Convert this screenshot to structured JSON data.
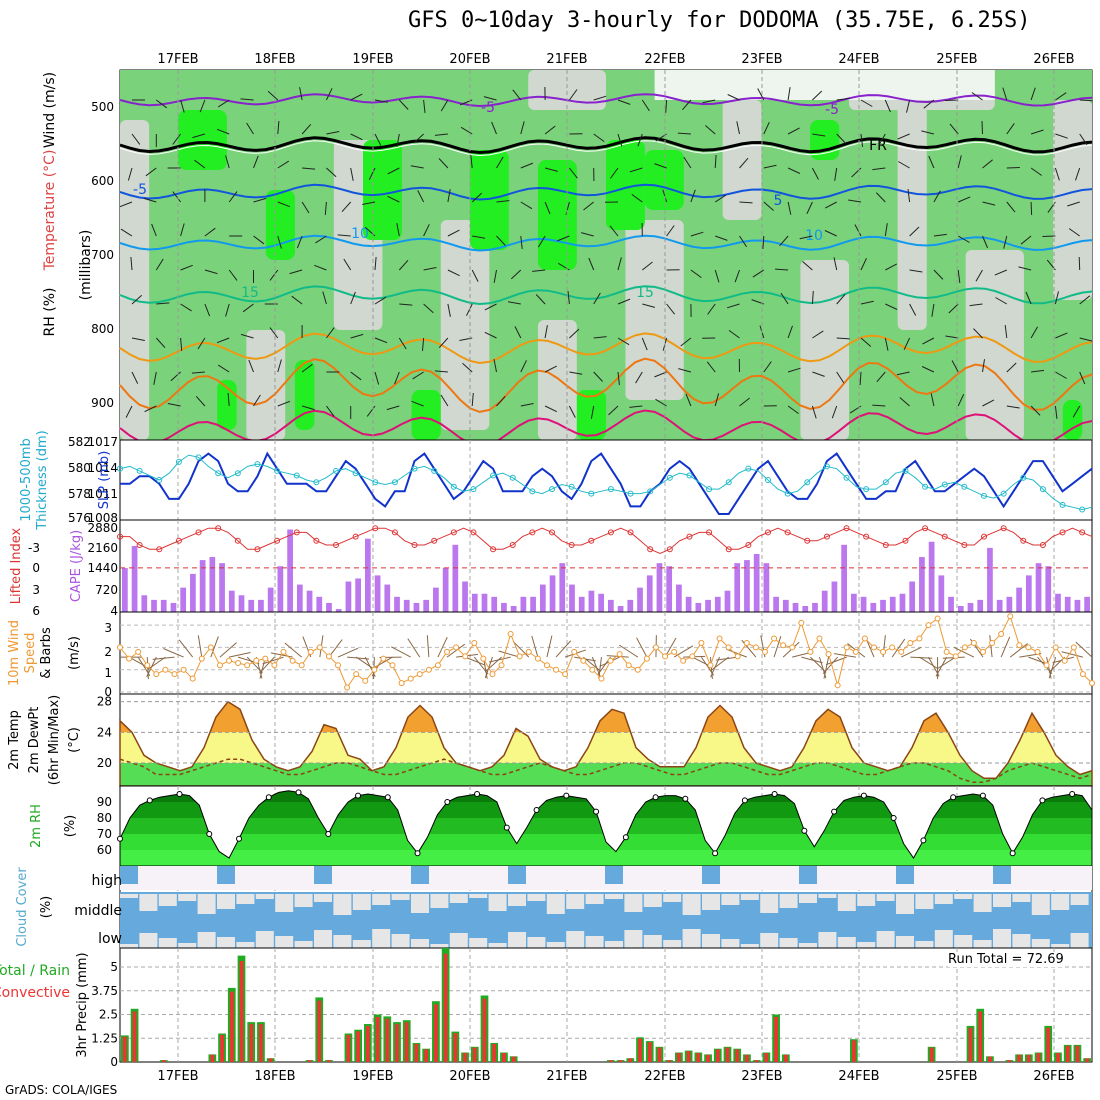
{
  "title": "GFS 0~10day 3-hourly for DODOMA (35.75E, 6.25S)",
  "credit": "GrADS: COLA/IGES",
  "run_total": "Run Total = 72.69",
  "date_labels": [
    "17FEB",
    "18FEB",
    "19FEB",
    "20FEB",
    "21FEB",
    "22FEB",
    "23FEB",
    "24FEB",
    "25FEB",
    "26FEB"
  ],
  "colors": {
    "rh_light": "#d0d8d0",
    "rh_mid": "#7ad27a",
    "rh_bright": "#22ee22",
    "t_minus5": "#8822cc",
    "t_zero": "#000000",
    "t_5": "#1155dd",
    "t_10": "#1199ee",
    "t_15": "#11bb88",
    "t_20": "#ee9911",
    "t_25": "#ee7711",
    "t_30": "#dd1177",
    "slp": "#1133cc",
    "thickness": "#22bbcc",
    "cape": "#bb77ee",
    "lifted": "#dd3333",
    "wind": "#ee9933",
    "temp_fill_hi": "#f2a030",
    "temp_fill_mid": "#f8f888",
    "temp_fill_low": "#55dd55",
    "rh2m": "#119911",
    "cloud": "#66aadd",
    "precip_total": "#22aa22",
    "precip_conv": "#ee3333"
  },
  "panels": {
    "upper": {
      "ylabel_wind": "Wind (m/s)",
      "ylabel_temp": "Temperature (°C)",
      "ylabel_rh": "RH (%)",
      "ylabel_pres": "(millibars)",
      "ticks": [
        "500",
        "600",
        "700",
        "800",
        "900"
      ],
      "contour_labels": [
        "-5",
        "-5",
        "FR",
        "-5",
        "5",
        "10",
        "10",
        "15",
        "15"
      ]
    },
    "slp": {
      "ylabel_a": "1000-500mb",
      "ylabel_b": "Thickness (dm)",
      "ylabel_c": "SLP (mb)",
      "left_ticks": [
        "582",
        "580",
        "578",
        "576"
      ],
      "right_ticks": [
        "1017",
        "1014",
        "1011",
        "1008"
      ]
    },
    "cape": {
      "ylabel_a": "Lifted Index",
      "ylabel_b": "CAPE (J/kg)",
      "left_ticks": [
        "-3",
        "0",
        "3",
        "6"
      ],
      "right_ticks": [
        "2880",
        "2160",
        "1440",
        "720",
        "4"
      ]
    },
    "wind": {
      "ylabel_a": "10m Wind",
      "ylabel_b": "Speed",
      "ylabel_c": "& Barbs",
      "ylabel_d": "(m/s)",
      "ticks": [
        "3",
        "2",
        "1",
        "0"
      ]
    },
    "temp": {
      "ylabel_a": "2m Temp",
      "ylabel_b": "2m DewPt",
      "ylabel_c": "(6hr Min/Max)",
      "ylabel_d": "(°C)",
      "ticks": [
        "28",
        "24",
        "20"
      ]
    },
    "rh": {
      "ylabel_a": "2m RH",
      "ylabel_b": "(%)",
      "ticks": [
        "90",
        "80",
        "70",
        "60"
      ]
    },
    "cloud": {
      "ylabel_a": "Cloud Cover",
      "ylabel_b": "(%)",
      "levels": [
        "high",
        "middle",
        "low"
      ]
    },
    "precip": {
      "ylabel_a": "Total / Rain",
      "ylabel_b": "Convective",
      "ylabel_c": "3hr Precip (mm)",
      "ticks": [
        "5",
        "3.75",
        "2.5",
        "1.25",
        "0"
      ]
    }
  },
  "chart_data": [
    {
      "type": "line",
      "name": "SLP (mb)",
      "ylim": [
        1008,
        1017
      ],
      "values": [
        1012,
        1012,
        1013,
        1013,
        1012,
        1010,
        1010,
        1012,
        1015,
        1016,
        1015,
        1012,
        1011,
        1011,
        1013,
        1016,
        1014,
        1012,
        1012,
        1012,
        1011,
        1011,
        1013,
        1015,
        1014,
        1012,
        1010,
        1009,
        1011,
        1011,
        1015,
        1016,
        1014,
        1012,
        1010,
        1011,
        1013,
        1015,
        1014,
        1011,
        1011,
        1011,
        1013,
        1014,
        1013,
        1011,
        1010,
        1012,
        1015,
        1016,
        1014,
        1012,
        1009,
        1009,
        1011,
        1012,
        1014,
        1015,
        1014,
        1012,
        1010,
        1008,
        1008,
        1010,
        1012,
        1014,
        1015,
        1013,
        1011,
        1010,
        1010,
        1012,
        1015,
        1016,
        1014,
        1012,
        1010,
        1010,
        1011,
        1011,
        1014,
        1015,
        1013,
        1011,
        1011,
        1012,
        1013,
        1014,
        1013,
        1011,
        1009,
        1011,
        1013,
        1015,
        1015,
        1013,
        1011,
        1012,
        1013,
        1014
      ]
    },
    {
      "type": "line",
      "name": "1000-500mb Thickness (dm)",
      "ylim": [
        576,
        582
      ],
      "values": [
        580.0,
        580.2,
        579.8,
        579.4,
        579.0,
        579.6,
        580.6,
        581.2,
        581.0,
        580.2,
        579.6,
        579.2,
        579.6,
        580.2,
        580.4,
        580.2,
        579.8,
        579.6,
        579.4,
        579.0,
        578.8,
        579.2,
        579.8,
        580.0,
        579.6,
        579.2,
        578.8,
        578.6,
        578.8,
        579.4,
        580.0,
        580.2,
        579.8,
        579.2,
        578.4,
        578.0,
        578.2,
        578.8,
        579.4,
        579.6,
        579.2,
        578.6,
        578.0,
        577.8,
        578.2,
        578.6,
        578.4,
        578.0,
        577.8,
        578.0,
        578.2,
        578.0,
        577.8,
        577.8,
        578.0,
        578.6,
        579.2,
        579.6,
        579.4,
        578.8,
        578.2,
        578.2,
        578.8,
        579.6,
        580.0,
        579.8,
        579.0,
        578.2,
        577.8,
        578.0,
        578.8,
        579.6,
        580.2,
        580.0,
        579.2,
        578.4,
        578.2,
        578.2,
        578.8,
        579.6,
        579.8,
        579.2,
        578.4,
        578.2,
        578.6,
        578.8,
        578.4,
        578.0,
        577.6,
        577.4,
        577.8,
        578.6,
        579.2,
        579.0,
        578.2,
        577.4,
        576.8,
        576.6,
        576.4,
        576.6
      ]
    },
    {
      "type": "bar",
      "name": "CAPE (J/kg)",
      "ylim": [
        4,
        2880
      ],
      "values": [
        1440,
        2160,
        550,
        400,
        400,
        300,
        800,
        1250,
        1700,
        1800,
        1600,
        700,
        550,
        400,
        400,
        800,
        1500,
        2700,
        900,
        700,
        500,
        300,
        100,
        1000,
        1100,
        2400,
        1200,
        900,
        500,
        400,
        300,
        400,
        800,
        1450,
        2200,
        1000,
        600,
        600,
        500,
        300,
        200,
        500,
        500,
        900,
        1200,
        1600,
        900,
        500,
        700,
        600,
        400,
        200,
        400,
        800,
        1200,
        1600,
        1500,
        900,
        500,
        300,
        400,
        500,
        700,
        1600,
        1700,
        1900,
        1600,
        500,
        400,
        300,
        200,
        300,
        700,
        1000,
        2200,
        600,
        500,
        300,
        400,
        500,
        600,
        1000,
        1800,
        2300,
        1200,
        500,
        200,
        300,
        400,
        2100,
        400,
        500,
        800,
        1200,
        1600,
        1500,
        600,
        500,
        400,
        500
      ]
    },
    {
      "type": "line",
      "name": "Lifted Index",
      "ylim": [
        6,
        -4
      ],
      "values": [
        -2.5,
        -2.5,
        -1.5,
        -1,
        -1,
        -1.5,
        -2,
        -2.5,
        -3,
        -3.5,
        -3.5,
        -3,
        -2,
        -1,
        -1,
        -1.5,
        -2,
        -2.5,
        -3,
        -3,
        -2,
        -1.5,
        -1.5,
        -2,
        -2.5,
        -3,
        -3.5,
        -3.5,
        -3,
        -2,
        -1.5,
        -1.5,
        -2,
        -2.5,
        -3,
        -3.5,
        -3,
        -2,
        -1,
        -1,
        -1.5,
        -2.5,
        -3,
        -3.5,
        -3,
        -2,
        -1.5,
        -1.5,
        -2,
        -2.5,
        -3,
        -3.5,
        -3,
        -2,
        -1,
        -0.5,
        -1,
        -2,
        -2.5,
        -3,
        -3,
        -2,
        -1,
        -1,
        -1.5,
        -2.5,
        -3,
        -3.5,
        -3,
        -2.5,
        -2,
        -2,
        -2.5,
        -3,
        -3.5,
        -3,
        -2.5,
        -2,
        -1.5,
        -1.5,
        -2,
        -3,
        -3.5,
        -3,
        -2.5,
        -2,
        -1.5,
        -1.5,
        -2.5,
        -3,
        -3.5,
        -3,
        -2,
        -1.5,
        -1.5,
        -2.5,
        -3,
        -3.5,
        -3,
        -2.5
      ]
    },
    {
      "type": "line",
      "name": "10m Wind Speed (m/s)",
      "ylim": [
        0,
        3.5
      ],
      "values": [
        2.0,
        1.5,
        1.8,
        1.2,
        0.8,
        1.0,
        0.8,
        1.0,
        0.6,
        1.5,
        2.0,
        1.2,
        1.4,
        1.3,
        1.2,
        1.4,
        1.5,
        1.2,
        1.8,
        1.4,
        1.2,
        1.8,
        2.0,
        1.6,
        1.2,
        0.2,
        0.8,
        0.5,
        1.0,
        1.5,
        1.2,
        0.4,
        0.6,
        0.8,
        1.0,
        1.2,
        1.8,
        2.0,
        1.6,
        2.2,
        1.5,
        0.8,
        1.2,
        2.6,
        1.6,
        1.8,
        1.5,
        1.2,
        1.0,
        0.8,
        1.8,
        1.4,
        1.0,
        0.6,
        1.4,
        1.7,
        1.2,
        1.0,
        1.5,
        2.0,
        1.6,
        1.8,
        1.4,
        1.6,
        2.2,
        1.2,
        2.4,
        2.0,
        1.6,
        2.2,
        2.0,
        1.8,
        2.4,
        2.1,
        2.0,
        3.1,
        1.8,
        2.4,
        1.7,
        0.3,
        2.0,
        1.8,
        2.4,
        2.0,
        1.8,
        2.0,
        1.8,
        2.2,
        2.4,
        3.0,
        3.3,
        1.8,
        1.6,
        2.0,
        2.2,
        1.8,
        2.2,
        2.6,
        3.4,
        2.1,
        2.0,
        1.8,
        1.2,
        2.0,
        1.4,
        2.0,
        0.8,
        0.4
      ]
    },
    {
      "type": "area",
      "name": "2m Temp (°C)",
      "ylim": [
        17,
        29
      ],
      "values": [
        25.5,
        24,
        21,
        20,
        19.5,
        19,
        19.5,
        22,
        26,
        28,
        27,
        23,
        20.5,
        19.5,
        19,
        19.5,
        21.5,
        25,
        24.5,
        21,
        20.5,
        19,
        19.5,
        22,
        26,
        27.5,
        26,
        22,
        20,
        19.5,
        19,
        19.5,
        21,
        24.5,
        23.5,
        20.5,
        19.5,
        19,
        19.5,
        22,
        25.5,
        27,
        26.5,
        22,
        20.5,
        19.5,
        19.5,
        19.5,
        22,
        26,
        27.5,
        26,
        22,
        20,
        19.5,
        19,
        19.5,
        22,
        25.5,
        27,
        26,
        22,
        20,
        19.5,
        19,
        19.5,
        22,
        25.5,
        26.5,
        24,
        21,
        19,
        18,
        18,
        20,
        23,
        26.5,
        24,
        21,
        19.5,
        18.5,
        19
      ]
    },
    {
      "type": "line",
      "name": "2m DewPt (°C)",
      "ylim": [
        17,
        29
      ],
      "values": [
        20.5,
        20,
        19.5,
        18.5,
        18.5,
        18.5,
        19,
        19.5,
        20,
        20.5,
        20.5,
        20,
        19.5,
        19,
        18.5,
        18.5,
        19,
        19.5,
        20,
        20,
        19.5,
        19,
        18.5,
        18.5,
        19,
        19.5,
        20,
        20.5,
        20,
        19.5,
        19,
        18.5,
        18.5,
        19,
        19.5,
        20,
        19.5,
        19,
        18.5,
        18.5,
        19,
        19.5,
        20,
        20,
        19.5,
        19,
        18.5,
        18.5,
        19,
        19.5,
        20,
        20,
        19.5,
        19,
        18.5,
        18.5,
        19,
        19.5,
        20,
        20,
        19.5,
        19,
        18.5,
        18.5,
        19,
        19.5,
        20,
        20,
        19.5,
        19,
        18,
        17.5,
        17.5,
        18,
        19,
        19.5,
        20,
        19.5,
        19,
        18.5,
        18,
        18.5
      ]
    },
    {
      "type": "area",
      "name": "2m RH (%)",
      "ylim": [
        50,
        100
      ],
      "values": [
        67,
        80,
        88,
        91,
        93,
        94,
        95,
        94,
        88,
        70,
        59,
        55,
        67,
        80,
        88,
        93,
        96,
        97,
        96,
        92,
        80,
        70,
        82,
        90,
        94,
        95,
        94,
        93,
        85,
        66,
        58,
        68,
        82,
        90,
        93,
        94,
        95,
        94,
        90,
        74,
        64,
        74,
        85,
        91,
        93,
        94,
        93,
        92,
        84,
        65,
        59,
        68,
        82,
        90,
        93,
        94,
        94,
        92,
        85,
        66,
        58,
        69,
        83,
        91,
        93,
        94,
        95,
        94,
        89,
        72,
        62,
        72,
        84,
        91,
        93,
        94,
        93,
        90,
        80,
        64,
        55,
        66,
        80,
        89,
        93,
        94,
        95,
        94,
        88,
        70,
        58,
        68,
        82,
        91,
        93,
        94,
        95,
        94,
        85
      ]
    },
    {
      "type": "bar",
      "name": "3hr Precip Total (mm)",
      "ylim": [
        0,
        6
      ],
      "values": [
        1.4,
        2.8,
        0,
        0,
        0.1,
        0,
        0,
        0,
        0,
        0.4,
        1.5,
        3.9,
        5.6,
        2.1,
        2.1,
        0.2,
        0,
        0,
        0,
        0.1,
        3.4,
        0.1,
        0,
        1.5,
        1.7,
        2.0,
        2.5,
        2.4,
        2.1,
        2.2,
        1.0,
        0.7,
        3.2,
        6.0,
        1.6,
        0.5,
        0.8,
        3.5,
        1.0,
        0.5,
        0.3,
        0,
        0,
        0,
        0,
        0,
        0,
        0,
        0,
        0,
        0.1,
        0.1,
        0.2,
        1.3,
        1.1,
        0.8,
        0.1,
        0.5,
        0.6,
        0.5,
        0.4,
        0.7,
        0.8,
        0.7,
        0.4,
        0.1,
        0.5,
        2.5,
        0.4,
        0,
        0,
        0,
        0,
        0,
        0,
        1.2,
        0,
        0,
        0,
        0,
        0,
        0,
        0,
        0.8,
        0,
        0,
        0,
        1.9,
        2.8,
        0.3,
        0,
        0.1,
        0.4,
        0.4,
        0.5,
        1.9,
        0.5,
        0.9,
        0.9,
        0.2
      ]
    }
  ]
}
